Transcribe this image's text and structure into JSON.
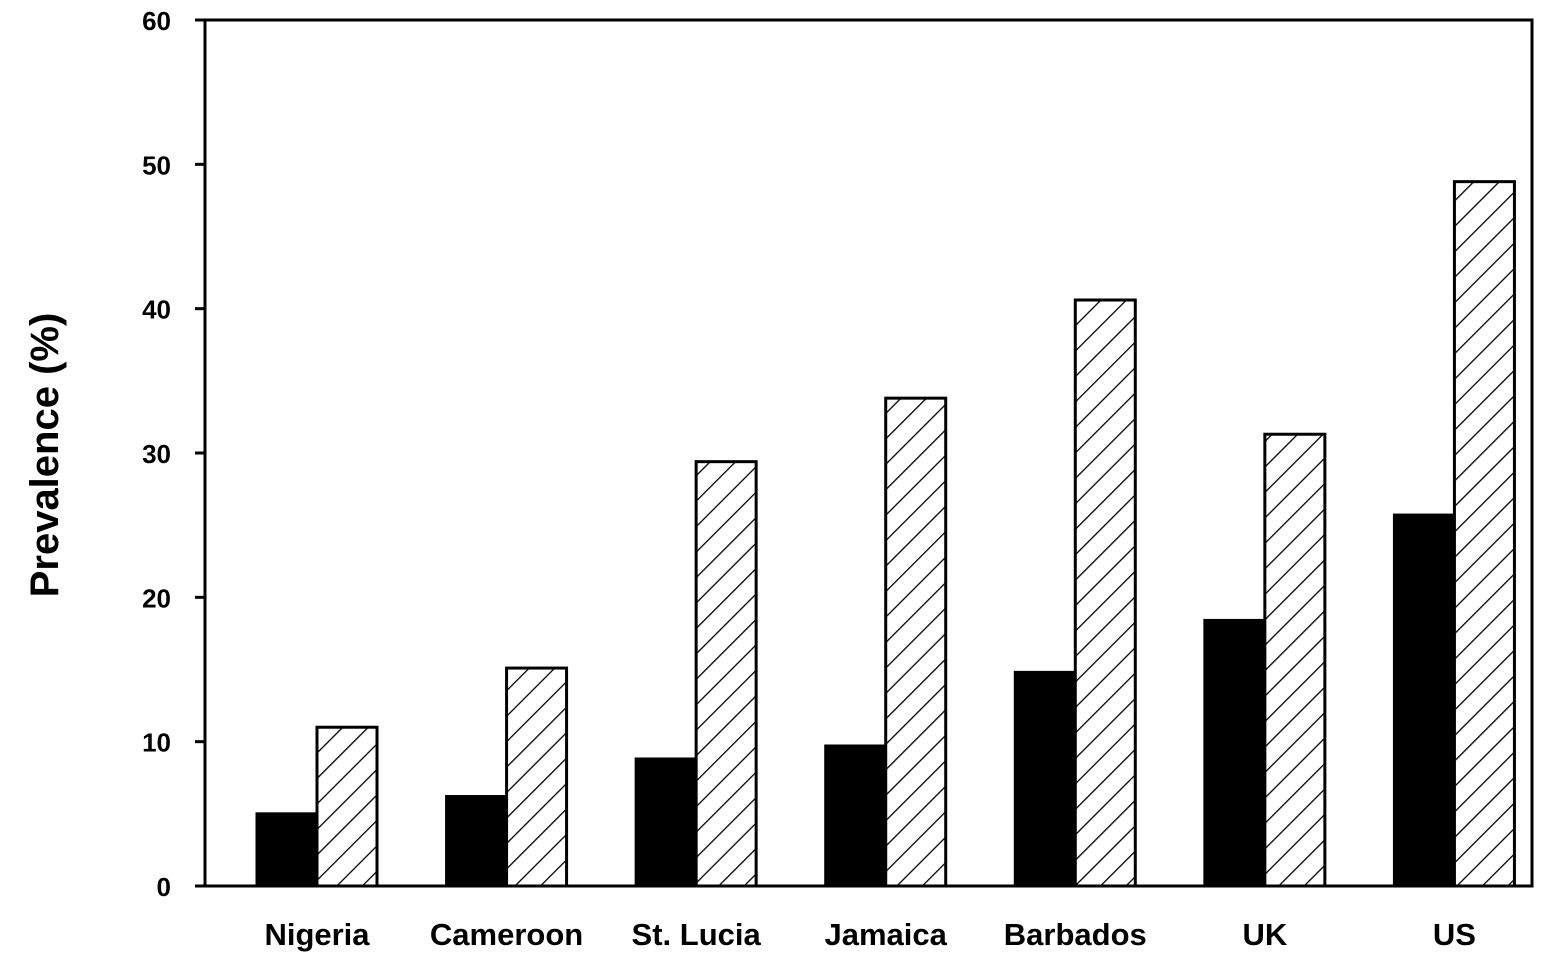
{
  "chart_data": {
    "type": "bar",
    "title": "",
    "xlabel": "",
    "ylabel": "Prevalence (%)",
    "ylim": [
      0,
      60
    ],
    "yticks": [
      0,
      10,
      20,
      30,
      40,
      50,
      60
    ],
    "grid": false,
    "legend": "none",
    "categories": [
      "Nigeria",
      "Cameroon",
      "St. Lucia",
      "Jamaica",
      "Barbados",
      "UK",
      "US"
    ],
    "series": [
      {
        "values": [
          5.0,
          6.2,
          8.8,
          9.7,
          14.8,
          18.4,
          25.7
        ],
        "fill": "#000000",
        "pattern": "solid"
      },
      {
        "values": [
          11.0,
          15.1,
          29.4,
          33.8,
          40.6,
          31.3,
          48.8
        ],
        "fill": "#ffffff",
        "pattern": "diagonal-hatch"
      }
    ]
  }
}
